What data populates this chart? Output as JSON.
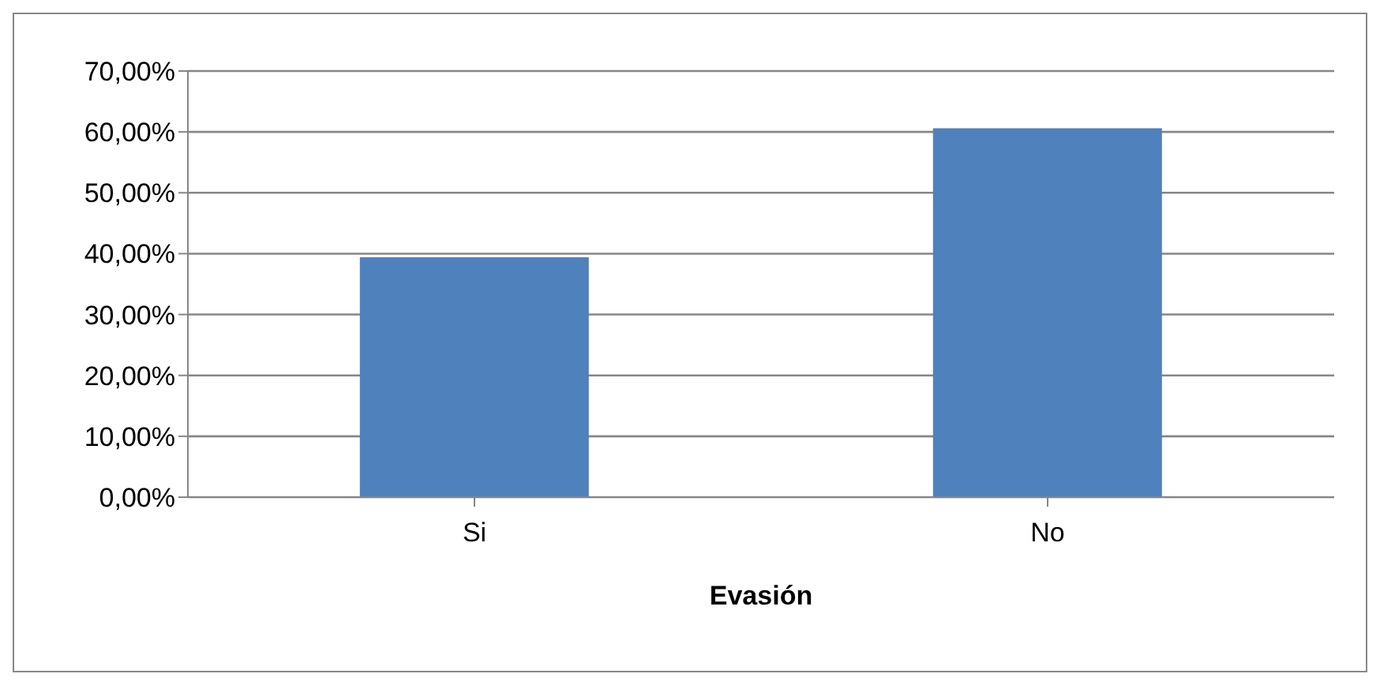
{
  "chart_data": {
    "type": "bar",
    "xlabel": "Evasión",
    "categories": [
      "Si",
      "No"
    ],
    "series": [
      {
        "color": "#4f81bd",
        "values": [
          39.4,
          60.6
        ]
      }
    ],
    "ylim": [
      0,
      70
    ],
    "yticks": [
      {
        "value": 0,
        "label": "0,00%"
      },
      {
        "value": 10,
        "label": "10,00%"
      },
      {
        "value": 20,
        "label": "20,00%"
      },
      {
        "value": 30,
        "label": "30,00%"
      },
      {
        "value": 40,
        "label": "40,00%"
      },
      {
        "value": 50,
        "label": "50,00%"
      },
      {
        "value": 60,
        "label": "60,00%"
      },
      {
        "value": 70,
        "label": "70,00%"
      }
    ],
    "grid": "y",
    "legend": false
  }
}
